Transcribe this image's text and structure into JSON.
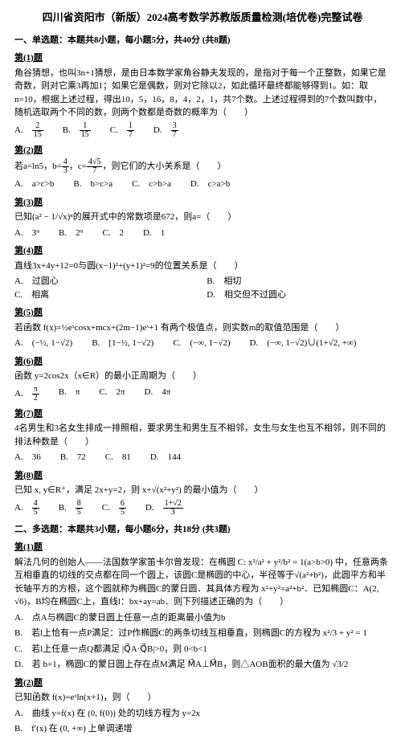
{
  "title": "四川省资阳市（新版）2024高考数学苏教版质量检测(培优卷)完整试卷",
  "section1_head": "一、单选题：本题共8小题，每小题5分，共40分 (共8题)",
  "section2_head": "二、多选题：本题共3小题，每小题6分，共18分 (共3题)",
  "q1": {
    "label": "第(1)题",
    "stem": "角谷猜想，也叫3n+1猜想，是由日本数学家角谷静夫发现的，是指对于每一个正整数，如果它是奇数，则对它乘3再加1；如果它是偶数，则对它除以2，如此循环最终都能够得到1。如：取n=10，根据上述过程，得出10，5，16，8，4，2，1，共7个数。上述过程得到的7个数叫数中，随机选取两个不同的数，则两个数都是奇数的概率为（　　）",
    "A": "A.",
    "Af": {
      "n": "2",
      "d": "15"
    },
    "B": "B.",
    "Bf": {
      "n": "1",
      "d": "15"
    },
    "C": "C.",
    "Cf": {
      "n": "1",
      "d": "7"
    },
    "D": "D.",
    "Df": {
      "n": "3",
      "d": "7"
    }
  },
  "q2": {
    "label": "第(2)题",
    "stem_pre": "若",
    "stem_mid": "a=ln5，b=",
    "bfrac": {
      "n": "4",
      "d": "3"
    },
    "stem_mid2": "，c=",
    "cfrac": {
      "n": "4√5",
      "d": "7"
    },
    "stem_post": "，则它们的大小关系是（　　）",
    "A": "A.　a>c>b",
    "B": "B.　b>c>a",
    "C": "C.　c>b>a",
    "D": "D.　c>a>b"
  },
  "q3": {
    "label": "第(3)题",
    "stem_pre": "已知",
    "binom": "(a² − 1/√x)ⁿ",
    "stem_post": "的展开式中的常数项是672，则a=（　　）",
    "A": "A.　3⁹",
    "B": "B.　2⁹",
    "C": "C.　2",
    "D": "D.　1"
  },
  "q4": {
    "label": "第(4)题",
    "stem": "直线3x+4y+12=0与圆(x−1)²+(y+1)²=9的位置关系是（　　）",
    "A": "A.　过圆心",
    "B": "B.　相切",
    "C": "C.　相离",
    "D": "D.　相交但不过圆心"
  },
  "q5": {
    "label": "第(5)题",
    "stem": "若函数 f(x)=½eˣcosx+mcx+(2m−1)eˣ+1 有两个极值点，则实数m的取值范围是（　　）",
    "A": "A.　(−½, 1−√2)",
    "B": "B.　[1−½, 1−√2)",
    "C": "C.　(−∞, 1−√2)",
    "D": "D.　(−∞, 1−√2)∪(1+√2, +∞)"
  },
  "q6": {
    "label": "第(6)题",
    "stem": "函数 y=2cos2x（x∈R）的最小正周期为（　　）",
    "A": "A.　",
    "Af": {
      "n": "π",
      "d": "2"
    },
    "B": "B.　π",
    "C": "C.　2π",
    "D": "D.　4π"
  },
  "q7": {
    "label": "第(7)题",
    "stem": "4名男生和3名女生排成一排照相，要求男生和男生互不相邻，女生与女生也互不相邻，则不同的排法种数是（　　）",
    "A": "A.　36",
    "B": "B.　72",
    "C": "C.　81",
    "D": "D.　144"
  },
  "q8": {
    "label": "第(8)题",
    "stem": "已知 x, y∈R⁺，满足 2x+y=2，则 x+√(x²+y²) 的最小值为（　　）",
    "A": "A.　",
    "Af": {
      "n": "4",
      "d": "5"
    },
    "B": "B.　",
    "Bf": {
      "n": "8",
      "d": "5"
    },
    "C": "C.　",
    "Cf": {
      "n": "6",
      "d": "5"
    },
    "D": "D.　",
    "Df": {
      "n": "1+√2",
      "d": "3"
    }
  },
  "m1": {
    "label": "第(1)题",
    "stem": "解法几何的创始人——法国数学家笛卡尔曾发现：在椭圆 C: x²/a² + y²/b² = 1(a>b>0) 中，任意两条互相垂直的切线的交点都在同一个圆上，该圆C是椭圆的中心，半径等于√(a²+b²)，此圆平方和半长轴平方的方根，这个圆就称为椭圆C的蒙日圆．其具体方程为 x²+y²=a²+b²．已知椭圆C：A(2, √6)，B均在椭圆C上，直线l：bx+ay=ab．则下列描述正确的为（　　）",
    "A": "A.　点A与椭圆C的蒙日圆上任意一点的距离最小值为b",
    "B": "B.　若l上恰有一点P满足：过P作椭圆C的两条切线互相垂直，则椭圆C的方程为 x²/3 + y² = 1",
    "C": "C.　若l上任意一点Q都满足 |Q⃗A·Q⃗B|>0，则 0<b<1",
    "D": "D.　若 b=1，椭圆C的蒙日圆上存在点M满足 M⃗A⊥M⃗B，则△AOB面积的最大值为 √3/2"
  },
  "m2": {
    "label": "第(2)题",
    "stem": "已知函数 f(x)=eˣln(x+1)，则（　　）",
    "A": "A.　曲线 y=f(x) 在 (0, f(0)) 处的切线方程为 y=2x",
    "B": "B.　f′(x) 在 (0, +∞) 上单调递增"
  }
}
